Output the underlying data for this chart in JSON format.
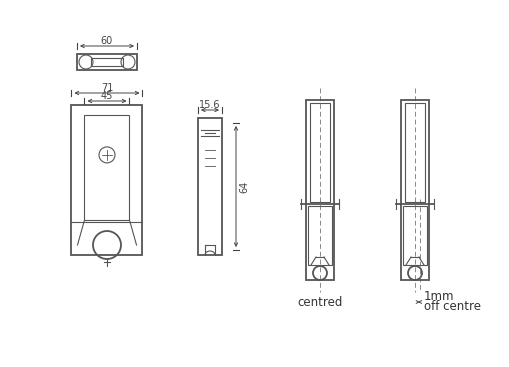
{
  "bg_color": "#ffffff",
  "line_color": "#555555",
  "dim_color": "#444444",
  "centerline_color": "#888888",
  "text_color": "#333333",
  "dim_60": "60",
  "dim_71": "71",
  "dim_45": "45",
  "dim_15_6": "15.6",
  "dim_64": "64",
  "label_centred": "centred",
  "label_1mm": "1mm",
  "label_off_centre": "off centre"
}
